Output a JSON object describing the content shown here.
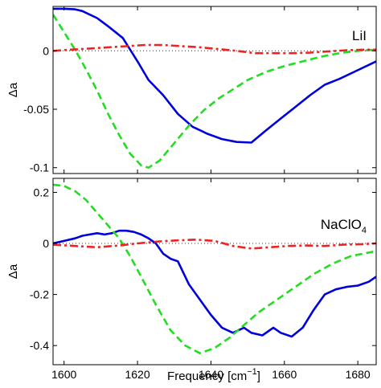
{
  "figure": {
    "xlabel_main": "Frequency [cm",
    "xlabel_sup": "−1",
    "xlabel_end": "]"
  },
  "chart_data": [
    {
      "type": "line",
      "label": "LiI",
      "xlabel": "Frequency [cm−1]",
      "ylabel": "Δa",
      "xlim": [
        1597,
        1685
      ],
      "ylim": [
        -0.105,
        0.038
      ],
      "xticks": [
        1600,
        1620,
        1640,
        1660,
        1680
      ],
      "xtick_labels": [
        "1600",
        "1620",
        "1640",
        "1660",
        "1680"
      ],
      "yticks": [
        0,
        -0.05,
        -0.1
      ],
      "ytick_labels": [
        "0",
        "-0.05",
        "-0.1"
      ],
      "zero_line": true,
      "series": [
        {
          "style": "solid",
          "color": "#0000dd",
          "x": [
            1597,
            1600,
            1603,
            1605,
            1609,
            1612,
            1616,
            1620,
            1623,
            1627,
            1631,
            1635,
            1639,
            1643,
            1647,
            1651,
            1655,
            1659,
            1663,
            1667,
            1671,
            1675,
            1679,
            1685
          ],
          "y": [
            0.036,
            0.036,
            0.0355,
            0.034,
            0.028,
            0.021,
            0.011,
            -0.009,
            -0.025,
            -0.038,
            -0.054,
            -0.065,
            -0.071,
            -0.0755,
            -0.078,
            -0.0785,
            -0.068,
            -0.058,
            -0.048,
            -0.038,
            -0.029,
            -0.024,
            -0.018,
            -0.009
          ]
        },
        {
          "style": "dashed",
          "color": "#22dd22",
          "x": [
            1597,
            1600,
            1603,
            1606,
            1609,
            1612,
            1615,
            1618,
            1621,
            1623,
            1626,
            1630,
            1634,
            1638,
            1642,
            1646,
            1650,
            1655,
            1660,
            1665,
            1670,
            1675,
            1680,
            1685
          ],
          "y": [
            0.031,
            0.016,
            0.001,
            -0.016,
            -0.034,
            -0.054,
            -0.072,
            -0.088,
            -0.098,
            -0.1,
            -0.094,
            -0.079,
            -0.064,
            -0.051,
            -0.041,
            -0.033,
            -0.025,
            -0.018,
            -0.013,
            -0.009,
            -0.005,
            -0.002,
            0.0,
            0.001
          ]
        },
        {
          "style": "dashdot",
          "color": "#ee2222",
          "x": [
            1597,
            1602,
            1607,
            1612,
            1617,
            1622,
            1627,
            1632,
            1637,
            1642,
            1647,
            1652,
            1657,
            1662,
            1667,
            1672,
            1677,
            1682,
            1685
          ],
          "y": [
            0.0,
            0.001,
            0.002,
            0.003,
            0.004,
            0.005,
            0.005,
            0.004,
            0.003,
            0.0015,
            0.0,
            -0.002,
            -0.002,
            -0.002,
            -0.0015,
            -0.0005,
            0.0005,
            0.001,
            0.001
          ]
        }
      ]
    },
    {
      "type": "line",
      "label_main": "NaClO",
      "label_sub": "4",
      "xlabel": "Frequency [cm−1]",
      "ylabel": "Δa",
      "xlim": [
        1597,
        1685
      ],
      "ylim": [
        -0.475,
        0.255
      ],
      "xticks": [
        1600,
        1620,
        1640,
        1660,
        1680
      ],
      "xtick_labels": [
        "1600",
        "1620",
        "1640",
        "1660",
        "1680"
      ],
      "yticks": [
        0.2,
        0,
        -0.2,
        -0.4
      ],
      "ytick_labels": [
        "0.2",
        "0",
        "-0.2",
        "-0.4"
      ],
      "zero_line": true,
      "series": [
        {
          "style": "solid",
          "color": "#0000dd",
          "x": [
            1597,
            1600,
            1603,
            1605,
            1607,
            1609,
            1611,
            1613,
            1615,
            1617,
            1619,
            1621,
            1623,
            1625,
            1627,
            1629,
            1631,
            1634,
            1637,
            1640,
            1643,
            1646,
            1649,
            1651,
            1654,
            1657,
            1659,
            1662,
            1665,
            1668,
            1671,
            1674,
            1677,
            1680,
            1683,
            1685
          ],
          "y": [
            0.0,
            0.01,
            0.02,
            0.03,
            0.035,
            0.04,
            0.035,
            0.04,
            0.05,
            0.05,
            0.045,
            0.035,
            0.02,
            0.0,
            -0.04,
            -0.06,
            -0.07,
            -0.16,
            -0.22,
            -0.28,
            -0.33,
            -0.35,
            -0.33,
            -0.35,
            -0.36,
            -0.33,
            -0.35,
            -0.365,
            -0.33,
            -0.26,
            -0.2,
            -0.18,
            -0.17,
            -0.165,
            -0.15,
            -0.13
          ]
        },
        {
          "style": "dashed",
          "color": "#22dd22",
          "x": [
            1597,
            1600,
            1603,
            1606,
            1609,
            1612,
            1615,
            1618,
            1621,
            1625,
            1629,
            1633,
            1637,
            1641,
            1645,
            1649,
            1653,
            1658,
            1663,
            1668,
            1673,
            1678,
            1685
          ],
          "y": [
            0.23,
            0.225,
            0.205,
            0.17,
            0.12,
            0.07,
            0.02,
            -0.05,
            -0.13,
            -0.24,
            -0.34,
            -0.4,
            -0.43,
            -0.41,
            -0.37,
            -0.32,
            -0.27,
            -0.22,
            -0.17,
            -0.12,
            -0.08,
            -0.05,
            -0.03
          ]
        },
        {
          "style": "dashdot",
          "color": "#ee2222",
          "x": [
            1597,
            1603,
            1609,
            1615,
            1620,
            1626,
            1631,
            1636,
            1641,
            1646,
            1651,
            1656,
            1661,
            1666,
            1671,
            1676,
            1681,
            1685
          ],
          "y": [
            -0.005,
            -0.01,
            -0.015,
            -0.008,
            0.0,
            0.008,
            0.012,
            0.015,
            0.01,
            -0.01,
            -0.02,
            -0.015,
            -0.01,
            -0.008,
            -0.01,
            -0.005,
            -0.003,
            0.0
          ]
        }
      ]
    }
  ]
}
